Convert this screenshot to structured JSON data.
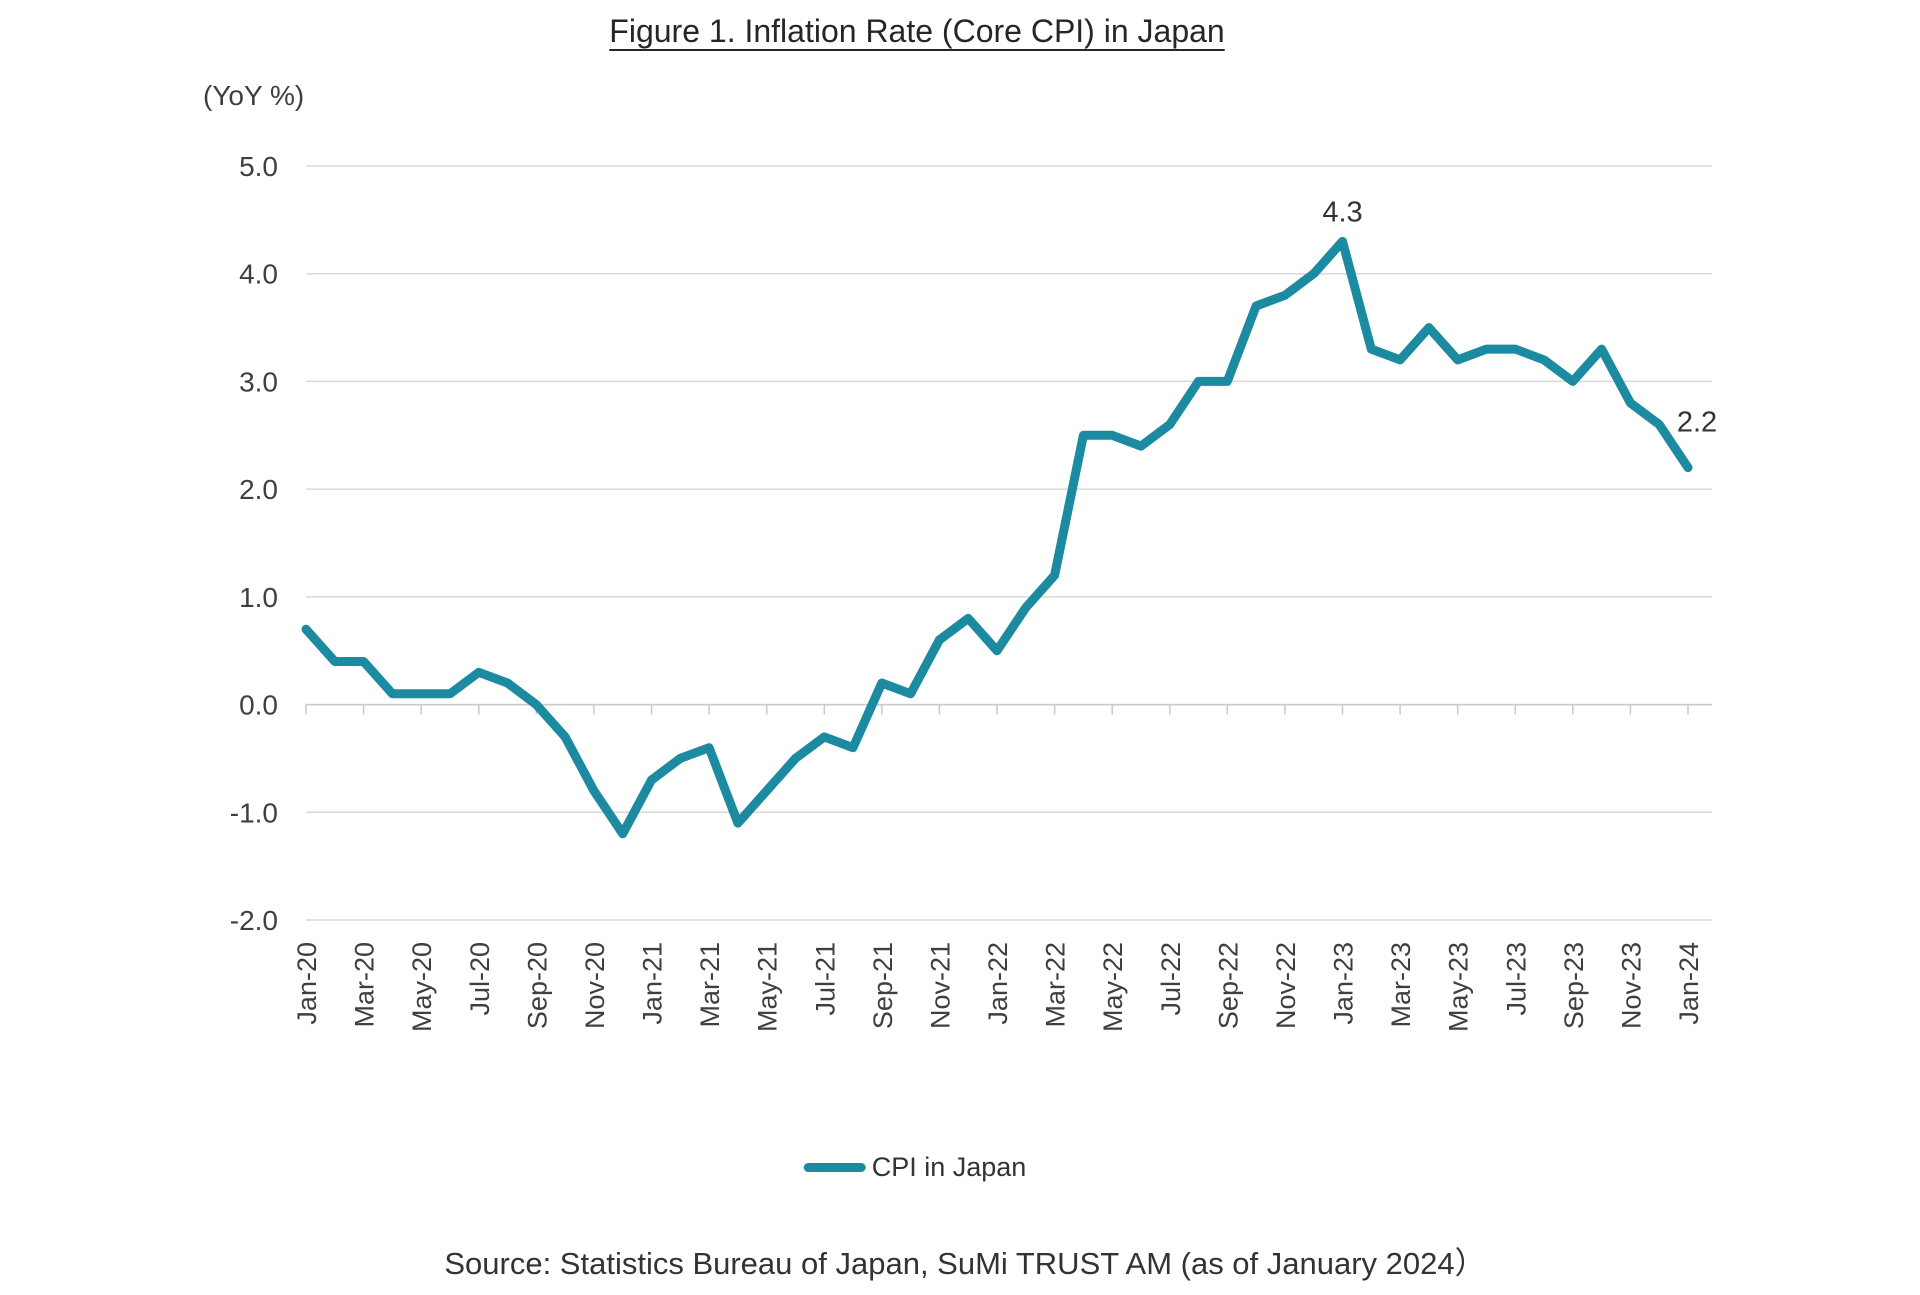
{
  "figure": {
    "title": "Figure 1. Inflation Rate (Core CPI) in Japan",
    "y_axis_unit": "(YoY %)",
    "legend_label": "CPI in Japan",
    "source": "Source: Statistics Bureau of Japan, SuMi TRUST AM (as of January 2024）"
  },
  "colors": {
    "line": "#1c8aa0",
    "grid": "#d9d9d9",
    "axis": "#c9c9c9",
    "text": "#3f3f3f",
    "annotation": "#333333"
  },
  "chart_data": {
    "type": "line",
    "title": "Figure 1. Inflation Rate (Core CPI) in Japan",
    "ylabel": "(YoY %)",
    "ylim": [
      -2.0,
      5.0
    ],
    "y_ticks": [
      5.0,
      4.0,
      3.0,
      2.0,
      1.0,
      0.0,
      -1.0,
      -2.0
    ],
    "x_tick_every": 2,
    "grid": true,
    "legend_position": "bottom",
    "x": [
      "Jan-20",
      "Feb-20",
      "Mar-20",
      "Apr-20",
      "May-20",
      "Jun-20",
      "Jul-20",
      "Aug-20",
      "Sep-20",
      "Oct-20",
      "Nov-20",
      "Dec-20",
      "Jan-21",
      "Feb-21",
      "Mar-21",
      "Apr-21",
      "May-21",
      "Jun-21",
      "Jul-21",
      "Aug-21",
      "Sep-21",
      "Oct-21",
      "Nov-21",
      "Dec-21",
      "Jan-22",
      "Feb-22",
      "Mar-22",
      "Apr-22",
      "May-22",
      "Jun-22",
      "Jul-22",
      "Aug-22",
      "Sep-22",
      "Oct-22",
      "Nov-22",
      "Dec-22",
      "Jan-23",
      "Feb-23",
      "Mar-23",
      "Apr-23",
      "May-23",
      "Jun-23",
      "Jul-23",
      "Aug-23",
      "Sep-23",
      "Oct-23",
      "Nov-23",
      "Dec-23",
      "Jan-24"
    ],
    "series": [
      {
        "name": "CPI in Japan",
        "color": "#1c8aa0",
        "values": [
          0.7,
          0.4,
          0.4,
          0.1,
          0.1,
          0.1,
          0.3,
          0.2,
          0.0,
          -0.3,
          -0.8,
          -1.2,
          -0.7,
          -0.5,
          -0.4,
          -1.1,
          -0.8,
          -0.5,
          -0.3,
          -0.4,
          0.2,
          0.1,
          0.6,
          0.8,
          0.5,
          0.9,
          1.2,
          2.5,
          2.5,
          2.4,
          2.6,
          3.0,
          3.0,
          3.7,
          3.8,
          4.0,
          4.3,
          3.3,
          3.2,
          3.5,
          3.2,
          3.3,
          3.3,
          3.2,
          3.0,
          3.3,
          2.8,
          2.6,
          2.2
        ]
      }
    ],
    "annotations": [
      {
        "x": "Jan-23",
        "y": 4.3,
        "label": "4.3"
      },
      {
        "x": "Jan-24",
        "y": 2.2,
        "label": "2.2"
      }
    ]
  }
}
